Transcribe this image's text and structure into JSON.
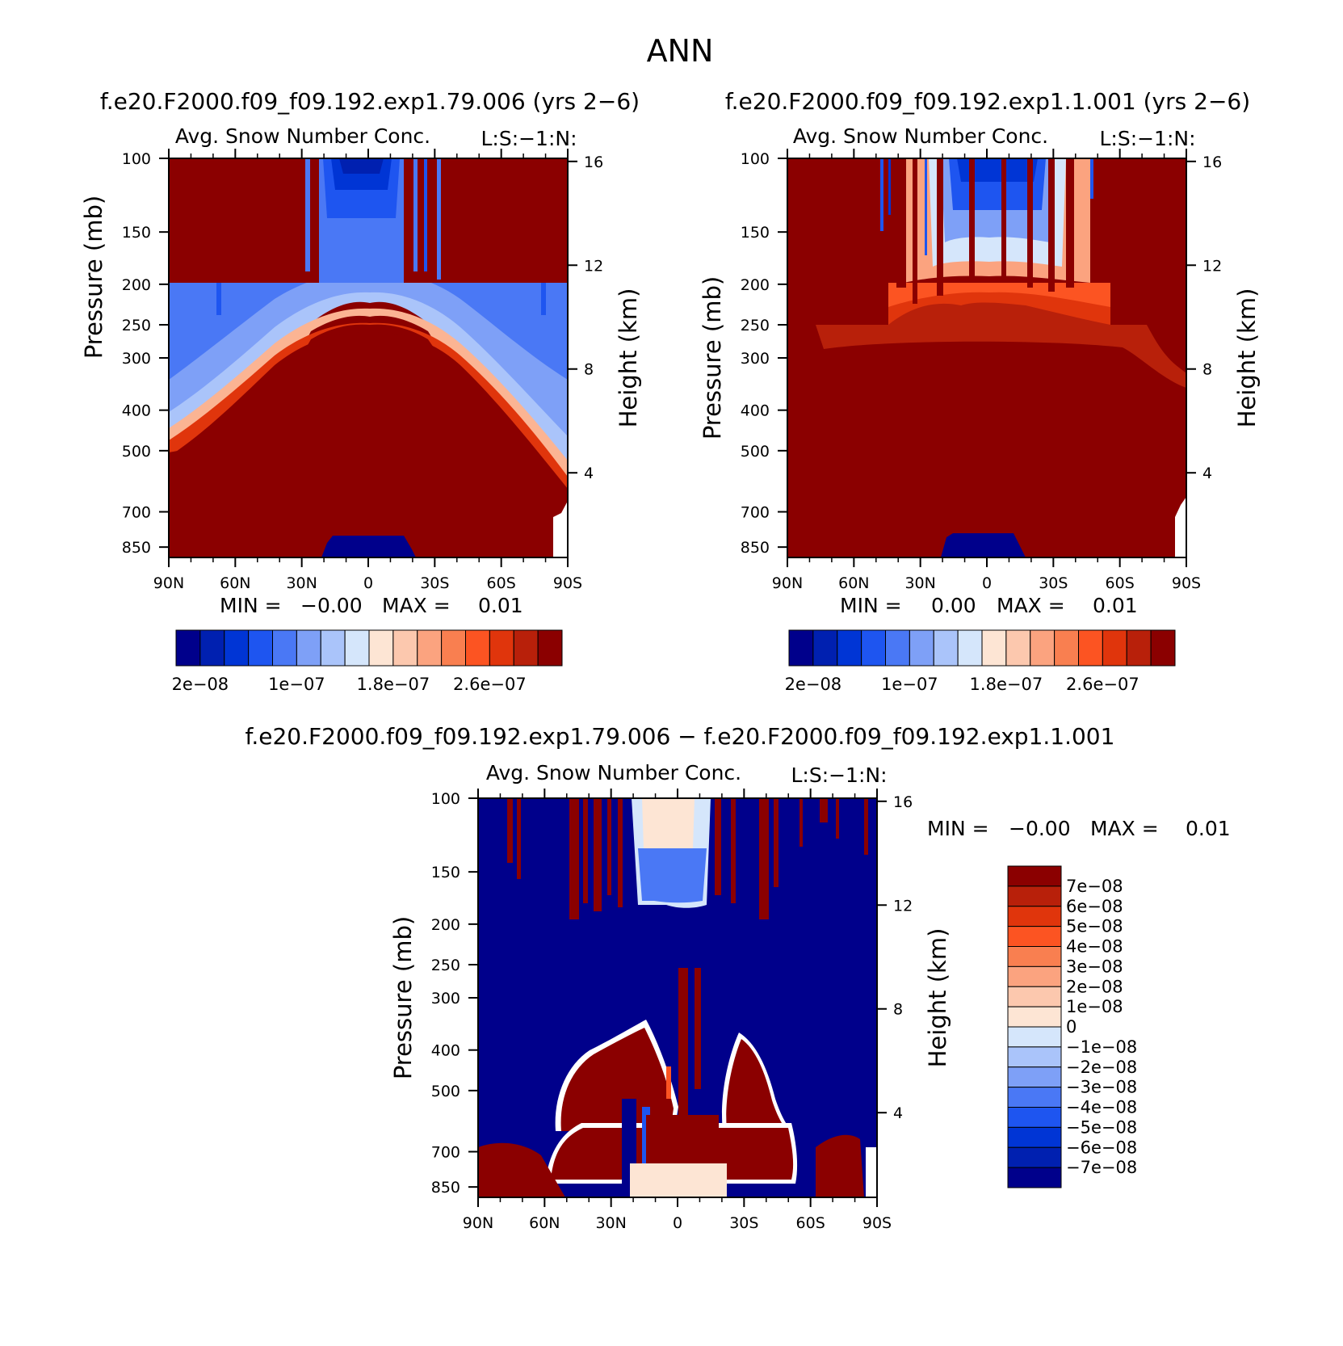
{
  "figure": {
    "title": "ANN"
  },
  "palette": {
    "dark_red": "#8b0000",
    "navy": "#00008b",
    "abs_colors": [
      "#00008b",
      "#0020b0",
      "#0035d5",
      "#1e55f0",
      "#4a78f5",
      "#7ea0f7",
      "#aac4fa",
      "#d5e6fb",
      "#fde5d4",
      "#fcc8ae",
      "#fba37f",
      "#f97f50",
      "#fc5422",
      "#e0350c",
      "#b8200a",
      "#8b0000"
    ],
    "diff_colors": [
      "#00008b",
      "#0020b0",
      "#0035d5",
      "#1e55f0",
      "#4a78f5",
      "#7ea0f7",
      "#aac4fa",
      "#d5e6fb",
      "#fde5d4",
      "#fcc8ae",
      "#fba37f",
      "#f97f50",
      "#fc5422",
      "#e0350c",
      "#b8200a",
      "#8b0000"
    ]
  },
  "chart_data": [
    {
      "type": "heatmap",
      "title": "f.e20.F2000.f09_f09.192.exp1.79.006 (yrs 2−6)",
      "subtitle": "Avg. Snow Number Conc.",
      "units": "L:S:−1:N:",
      "xlabel": "",
      "ylabel": "Pressure (mb)",
      "ylabel_right": "Height (km)",
      "x_ticks": [
        "90N",
        "60N",
        "30N",
        "0",
        "30S",
        "60S",
        "90S"
      ],
      "y_ticks": [
        "100",
        "150",
        "200",
        "250",
        "300",
        "400",
        "500",
        "700",
        "850"
      ],
      "y_right_ticks": [
        "16",
        "12",
        "8",
        "4"
      ],
      "ylim": [
        100,
        900
      ],
      "min_label": "MIN =",
      "min_value": "−0.00",
      "max_label": "MAX =",
      "max_value": "0.01",
      "colorbar_labels": [
        "2e−08",
        "1e−07",
        "1.8e−07",
        "2.6e−07"
      ]
    },
    {
      "type": "heatmap",
      "title": "f.e20.F2000.f09_f09.192.exp1.1.001 (yrs 2−6)",
      "subtitle": "Avg. Snow Number Conc.",
      "units": "L:S:−1:N:",
      "xlabel": "",
      "ylabel": "Pressure (mb)",
      "ylabel_right": "Height (km)",
      "x_ticks": [
        "90N",
        "60N",
        "30N",
        "0",
        "30S",
        "60S",
        "90S"
      ],
      "y_ticks": [
        "100",
        "150",
        "200",
        "250",
        "300",
        "400",
        "500",
        "700",
        "850"
      ],
      "y_right_ticks": [
        "16",
        "12",
        "8",
        "4"
      ],
      "ylim": [
        100,
        900
      ],
      "min_label": "MIN =",
      "min_value": "0.00",
      "max_label": "MAX =",
      "max_value": "0.01",
      "colorbar_labels": [
        "2e−08",
        "1e−07",
        "1.8e−07",
        "2.6e−07"
      ]
    },
    {
      "type": "heatmap",
      "title": "f.e20.F2000.f09_f09.192.exp1.79.006 − f.e20.F2000.f09_f09.192.exp1.1.001",
      "subtitle": "Avg. Snow Number Conc.",
      "units": "L:S:−1:N:",
      "xlabel": "",
      "ylabel": "Pressure (mb)",
      "ylabel_right": "Height (km)",
      "x_ticks": [
        "90N",
        "60N",
        "30N",
        "0",
        "30S",
        "60S",
        "90S"
      ],
      "y_ticks": [
        "100",
        "150",
        "200",
        "250",
        "300",
        "400",
        "500",
        "700",
        "850"
      ],
      "y_right_ticks": [
        "16",
        "12",
        "8",
        "4"
      ],
      "ylim": [
        100,
        900
      ],
      "min_label": "MIN =",
      "min_value": "−0.00",
      "max_label": "MAX =",
      "max_value": "0.01",
      "colorbar_labels": [
        "7e−08",
        "6e−08",
        "5e−08",
        "4e−08",
        "3e−08",
        "2e−08",
        "1e−08",
        "0",
        "−1e−08",
        "−2e−08",
        "−3e−08",
        "−4e−08",
        "−5e−08",
        "−6e−08",
        "−7e−08"
      ]
    }
  ]
}
